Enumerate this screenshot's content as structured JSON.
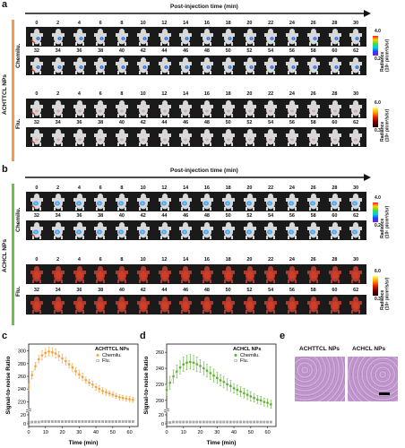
{
  "panel_a": {
    "letter": "a",
    "header": "Post-injection time (min)",
    "group_label": "ACHTTCL NPs",
    "row_label_chemi": "Chemilu.",
    "row_label_flu": "Flu.",
    "chemi_colorbar": {
      "max": "4.0",
      "min": "0.2",
      "title_line1": "Radiance",
      "title_line2": "(10⁵ p/cm²/s/sr)"
    },
    "flu_colorbar": {
      "max": "6.0",
      "min": "0.3",
      "title_line1": "Radiance",
      "title_line2": "(10⁹ p/cm²/s/sr)"
    }
  },
  "panel_b": {
    "letter": "b",
    "header": "Post-injection time (min)",
    "group_label": "ACHCL NPs",
    "row_label_chemi": "Chemilu.",
    "row_label_flu": "Flu.",
    "chemi_colorbar": {
      "max": "4.0",
      "min": "0.2",
      "title_line1": "Radiance",
      "title_line2": "(10⁵ p/cm²/s/sr)"
    },
    "flu_colorbar": {
      "max": "6.0",
      "min": "0.3",
      "title_line1": "Radiance",
      "title_line2": "(10⁹ p/cm²/s/sr)"
    }
  },
  "time_row1": [
    "0",
    "2",
    "4",
    "6",
    "8",
    "10",
    "12",
    "14",
    "16",
    "18",
    "20",
    "22",
    "24",
    "26",
    "28",
    "30"
  ],
  "time_row2": [
    "32",
    "34",
    "36",
    "38",
    "40",
    "42",
    "44",
    "46",
    "48",
    "50",
    "52",
    "54",
    "56",
    "58",
    "60",
    "62"
  ],
  "panel_c": {
    "letter": "c"
  },
  "panel_d": {
    "letter": "d"
  },
  "panel_e": {
    "letter": "e",
    "label_left": "ACHTTCL NPs",
    "label_right": "ACHCL NPs"
  },
  "chart_data": [
    {
      "type": "scatter",
      "panel": "c",
      "legend_title": "ACHTTCL NPs",
      "xlabel": "Time (min)",
      "ylabel": "Signal-to-noise Ratio",
      "xlim": [
        0,
        65
      ],
      "x_ticks": [
        0,
        10,
        20,
        30,
        40,
        50,
        60
      ],
      "y_ticks_lower": [
        0,
        20
      ],
      "y_ticks_upper": [
        220,
        240,
        260,
        280,
        300
      ],
      "axis_break": [
        25,
        210
      ],
      "x": [
        0,
        2,
        4,
        6,
        8,
        10,
        12,
        14,
        16,
        18,
        20,
        22,
        24,
        26,
        28,
        30,
        32,
        34,
        36,
        38,
        40,
        42,
        44,
        46,
        48,
        50,
        52,
        54,
        56,
        58,
        60,
        62
      ],
      "series": [
        {
          "name": "Chemilu.",
          "color": "#f5a03a",
          "values": [
            243,
            262,
            276,
            287,
            293,
            297,
            299,
            298,
            296,
            292,
            288,
            284,
            279,
            274,
            268,
            263,
            259,
            254,
            250,
            247,
            243,
            240,
            237,
            235,
            233,
            231,
            229,
            227,
            226,
            225,
            224,
            223
          ],
          "errors": [
            6,
            6,
            6,
            6,
            7,
            7,
            7,
            7,
            7,
            7,
            7,
            6,
            6,
            6,
            6,
            6,
            6,
            5,
            5,
            5,
            5,
            5,
            5,
            5,
            4,
            4,
            4,
            4,
            4,
            4,
            4,
            4
          ]
        },
        {
          "name": "Flu.",
          "color": "#888888",
          "values": [
            3,
            4,
            4,
            4,
            5,
            5,
            5,
            5,
            5,
            5,
            5,
            5,
            5,
            5,
            5,
            5,
            5,
            5,
            5,
            5,
            5,
            5,
            5,
            5,
            5,
            5,
            5,
            5,
            5,
            5,
            5,
            5
          ],
          "errors": [
            1,
            1,
            1,
            1,
            1,
            1,
            1,
            1,
            1,
            1,
            1,
            1,
            1,
            1,
            1,
            1,
            1,
            1,
            1,
            1,
            1,
            1,
            1,
            1,
            1,
            1,
            1,
            1,
            1,
            1,
            1,
            1
          ]
        }
      ]
    },
    {
      "type": "scatter",
      "panel": "d",
      "legend_title": "ACHCL NPs",
      "xlabel": "Time (min)",
      "ylabel": "Signal-to-noise Ratio",
      "xlim": [
        0,
        65
      ],
      "x_ticks": [
        0,
        10,
        20,
        30,
        40,
        50,
        60
      ],
      "y_ticks_lower": [
        0,
        20
      ],
      "y_ticks_upper": [
        200,
        220,
        240,
        260
      ],
      "axis_break": [
        25,
        185
      ],
      "x": [
        0,
        2,
        4,
        6,
        8,
        10,
        12,
        14,
        16,
        18,
        20,
        22,
        24,
        26,
        28,
        30,
        32,
        34,
        36,
        38,
        40,
        42,
        44,
        46,
        48,
        50,
        52,
        54,
        56,
        58,
        60,
        62
      ],
      "series": [
        {
          "name": "Chemilu.",
          "color": "#5cb030",
          "values": [
            213,
            222,
            230,
            236,
            241,
            245,
            247,
            248,
            247,
            245,
            243,
            240,
            237,
            234,
            231,
            228,
            225,
            223,
            220,
            218,
            215,
            213,
            211,
            209,
            207,
            205,
            203,
            201,
            200,
            198,
            197,
            195
          ],
          "errors": [
            8,
            8,
            8,
            8,
            8,
            9,
            9,
            9,
            9,
            9,
            8,
            8,
            8,
            8,
            8,
            7,
            7,
            7,
            7,
            7,
            6,
            6,
            6,
            6,
            6,
            6,
            5,
            5,
            5,
            5,
            5,
            5
          ]
        },
        {
          "name": "Flu.",
          "color": "#888888",
          "values": [
            3,
            3,
            4,
            4,
            4,
            4,
            4,
            4,
            4,
            4,
            4,
            4,
            4,
            4,
            4,
            4,
            4,
            4,
            4,
            4,
            4,
            4,
            4,
            4,
            4,
            4,
            4,
            4,
            4,
            4,
            4,
            4
          ],
          "errors": [
            1,
            1,
            1,
            1,
            1,
            1,
            1,
            1,
            1,
            1,
            1,
            1,
            1,
            1,
            1,
            1,
            1,
            1,
            1,
            1,
            1,
            1,
            1,
            1,
            1,
            1,
            1,
            1,
            1,
            1,
            1,
            1
          ]
        }
      ]
    }
  ]
}
